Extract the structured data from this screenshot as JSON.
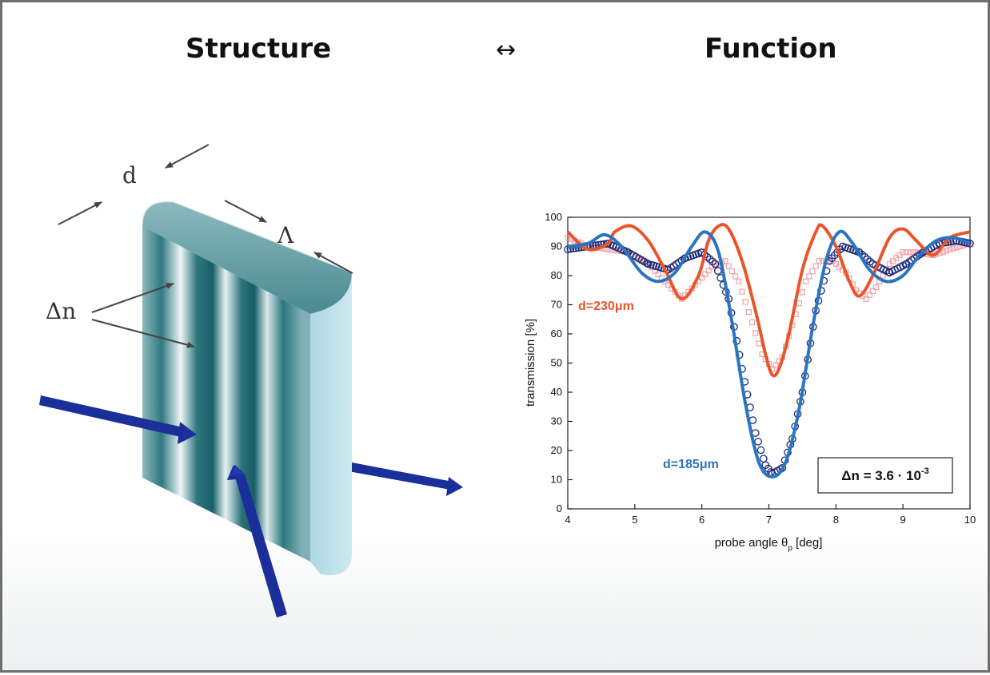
{
  "header": {
    "left_title": "Structure",
    "separator": "↔",
    "right_title": "Function"
  },
  "structure": {
    "label_d": "d",
    "label_period": "Λ",
    "label_index": "Δn",
    "grating_color": "#1f6b72",
    "beam_color": "#1b2f9a"
  },
  "chart_data": {
    "type": "line",
    "xlabel": "probe angle θ",
    "xlabel_subscript": "p",
    "xlabel_unit": "[deg]",
    "ylabel": "transmission [%]",
    "xlim": [
      4,
      10
    ],
    "ylim": [
      0,
      100
    ],
    "xticks": [
      4,
      5,
      6,
      7,
      8,
      9,
      10
    ],
    "yticks": [
      0,
      10,
      20,
      30,
      40,
      50,
      60,
      70,
      80,
      90,
      100
    ],
    "grid": false,
    "annotation": "Δn = 3.6 · 10",
    "annotation_exponent": "-3",
    "series": [
      {
        "name": "d=230μm",
        "color": "#e8552a",
        "fit": [
          [
            4,
            95
          ],
          [
            4.3,
            89
          ],
          [
            4.6,
            91
          ],
          [
            4.7,
            95
          ],
          [
            4.95,
            97
          ],
          [
            5.2,
            92
          ],
          [
            5.45,
            82
          ],
          [
            5.7,
            72
          ],
          [
            5.95,
            80
          ],
          [
            6.1,
            92
          ],
          [
            6.25,
            97
          ],
          [
            6.4,
            96
          ],
          [
            6.6,
            85
          ],
          [
            6.8,
            68
          ],
          [
            6.95,
            53
          ],
          [
            7.05,
            46
          ],
          [
            7.15,
            48
          ],
          [
            7.3,
            60
          ],
          [
            7.5,
            82
          ],
          [
            7.7,
            95
          ],
          [
            7.8,
            97
          ],
          [
            8.0,
            90
          ],
          [
            8.2,
            78
          ],
          [
            8.35,
            73
          ],
          [
            8.55,
            80
          ],
          [
            8.8,
            93
          ],
          [
            9.0,
            96
          ],
          [
            9.2,
            92
          ],
          [
            9.45,
            87
          ],
          [
            9.7,
            93
          ],
          [
            10,
            95
          ]
        ],
        "measured": [
          [
            4,
            93
          ],
          [
            4.3,
            90
          ],
          [
            4.6,
            89
          ],
          [
            4.9,
            88
          ],
          [
            5.2,
            84
          ],
          [
            5.45,
            78
          ],
          [
            5.7,
            72
          ],
          [
            5.95,
            78
          ],
          [
            6.15,
            83
          ],
          [
            6.35,
            85
          ],
          [
            6.55,
            78
          ],
          [
            6.75,
            64
          ],
          [
            6.9,
            53
          ],
          [
            7.05,
            48
          ],
          [
            7.2,
            52
          ],
          [
            7.35,
            63
          ],
          [
            7.55,
            78
          ],
          [
            7.75,
            85
          ],
          [
            7.95,
            85
          ],
          [
            8.15,
            81
          ],
          [
            8.3,
            75
          ],
          [
            8.45,
            72
          ],
          [
            8.6,
            76
          ],
          [
            8.8,
            84
          ],
          [
            9.0,
            88
          ],
          [
            9.2,
            88
          ],
          [
            9.45,
            87
          ],
          [
            9.7,
            89
          ],
          [
            10,
            91
          ]
        ]
      },
      {
        "name": "d=185μm",
        "color": "#2a74c0",
        "fit": [
          [
            4,
            90
          ],
          [
            4.3,
            91
          ],
          [
            4.55,
            94
          ],
          [
            4.8,
            90
          ],
          [
            5.1,
            81
          ],
          [
            5.35,
            78
          ],
          [
            5.6,
            81
          ],
          [
            5.85,
            90
          ],
          [
            6.05,
            95
          ],
          [
            6.25,
            88
          ],
          [
            6.45,
            64
          ],
          [
            6.65,
            36
          ],
          [
            6.85,
            16
          ],
          [
            7.05,
            11
          ],
          [
            7.25,
            16
          ],
          [
            7.45,
            34
          ],
          [
            7.65,
            62
          ],
          [
            7.85,
            85
          ],
          [
            8.05,
            95
          ],
          [
            8.25,
            91
          ],
          [
            8.5,
            82
          ],
          [
            8.75,
            78
          ],
          [
            9.0,
            80
          ],
          [
            9.25,
            87
          ],
          [
            9.5,
            92
          ],
          [
            9.75,
            93
          ],
          [
            10,
            91
          ]
        ],
        "measured": [
          [
            4,
            89
          ],
          [
            4.3,
            90
          ],
          [
            4.6,
            91
          ],
          [
            4.9,
            88
          ],
          [
            5.2,
            84
          ],
          [
            5.5,
            82
          ],
          [
            5.75,
            86
          ],
          [
            6.0,
            88
          ],
          [
            6.2,
            84
          ],
          [
            6.4,
            72
          ],
          [
            6.6,
            48
          ],
          [
            6.8,
            26
          ],
          [
            6.95,
            15
          ],
          [
            7.05,
            12
          ],
          [
            7.2,
            14
          ],
          [
            7.35,
            24
          ],
          [
            7.5,
            40
          ],
          [
            7.7,
            68
          ],
          [
            7.9,
            85
          ],
          [
            8.1,
            90
          ],
          [
            8.35,
            88
          ],
          [
            8.55,
            84
          ],
          [
            8.8,
            81
          ],
          [
            9.05,
            84
          ],
          [
            9.3,
            88
          ],
          [
            9.55,
            91
          ],
          [
            9.8,
            92
          ],
          [
            10,
            91
          ]
        ]
      }
    ]
  }
}
